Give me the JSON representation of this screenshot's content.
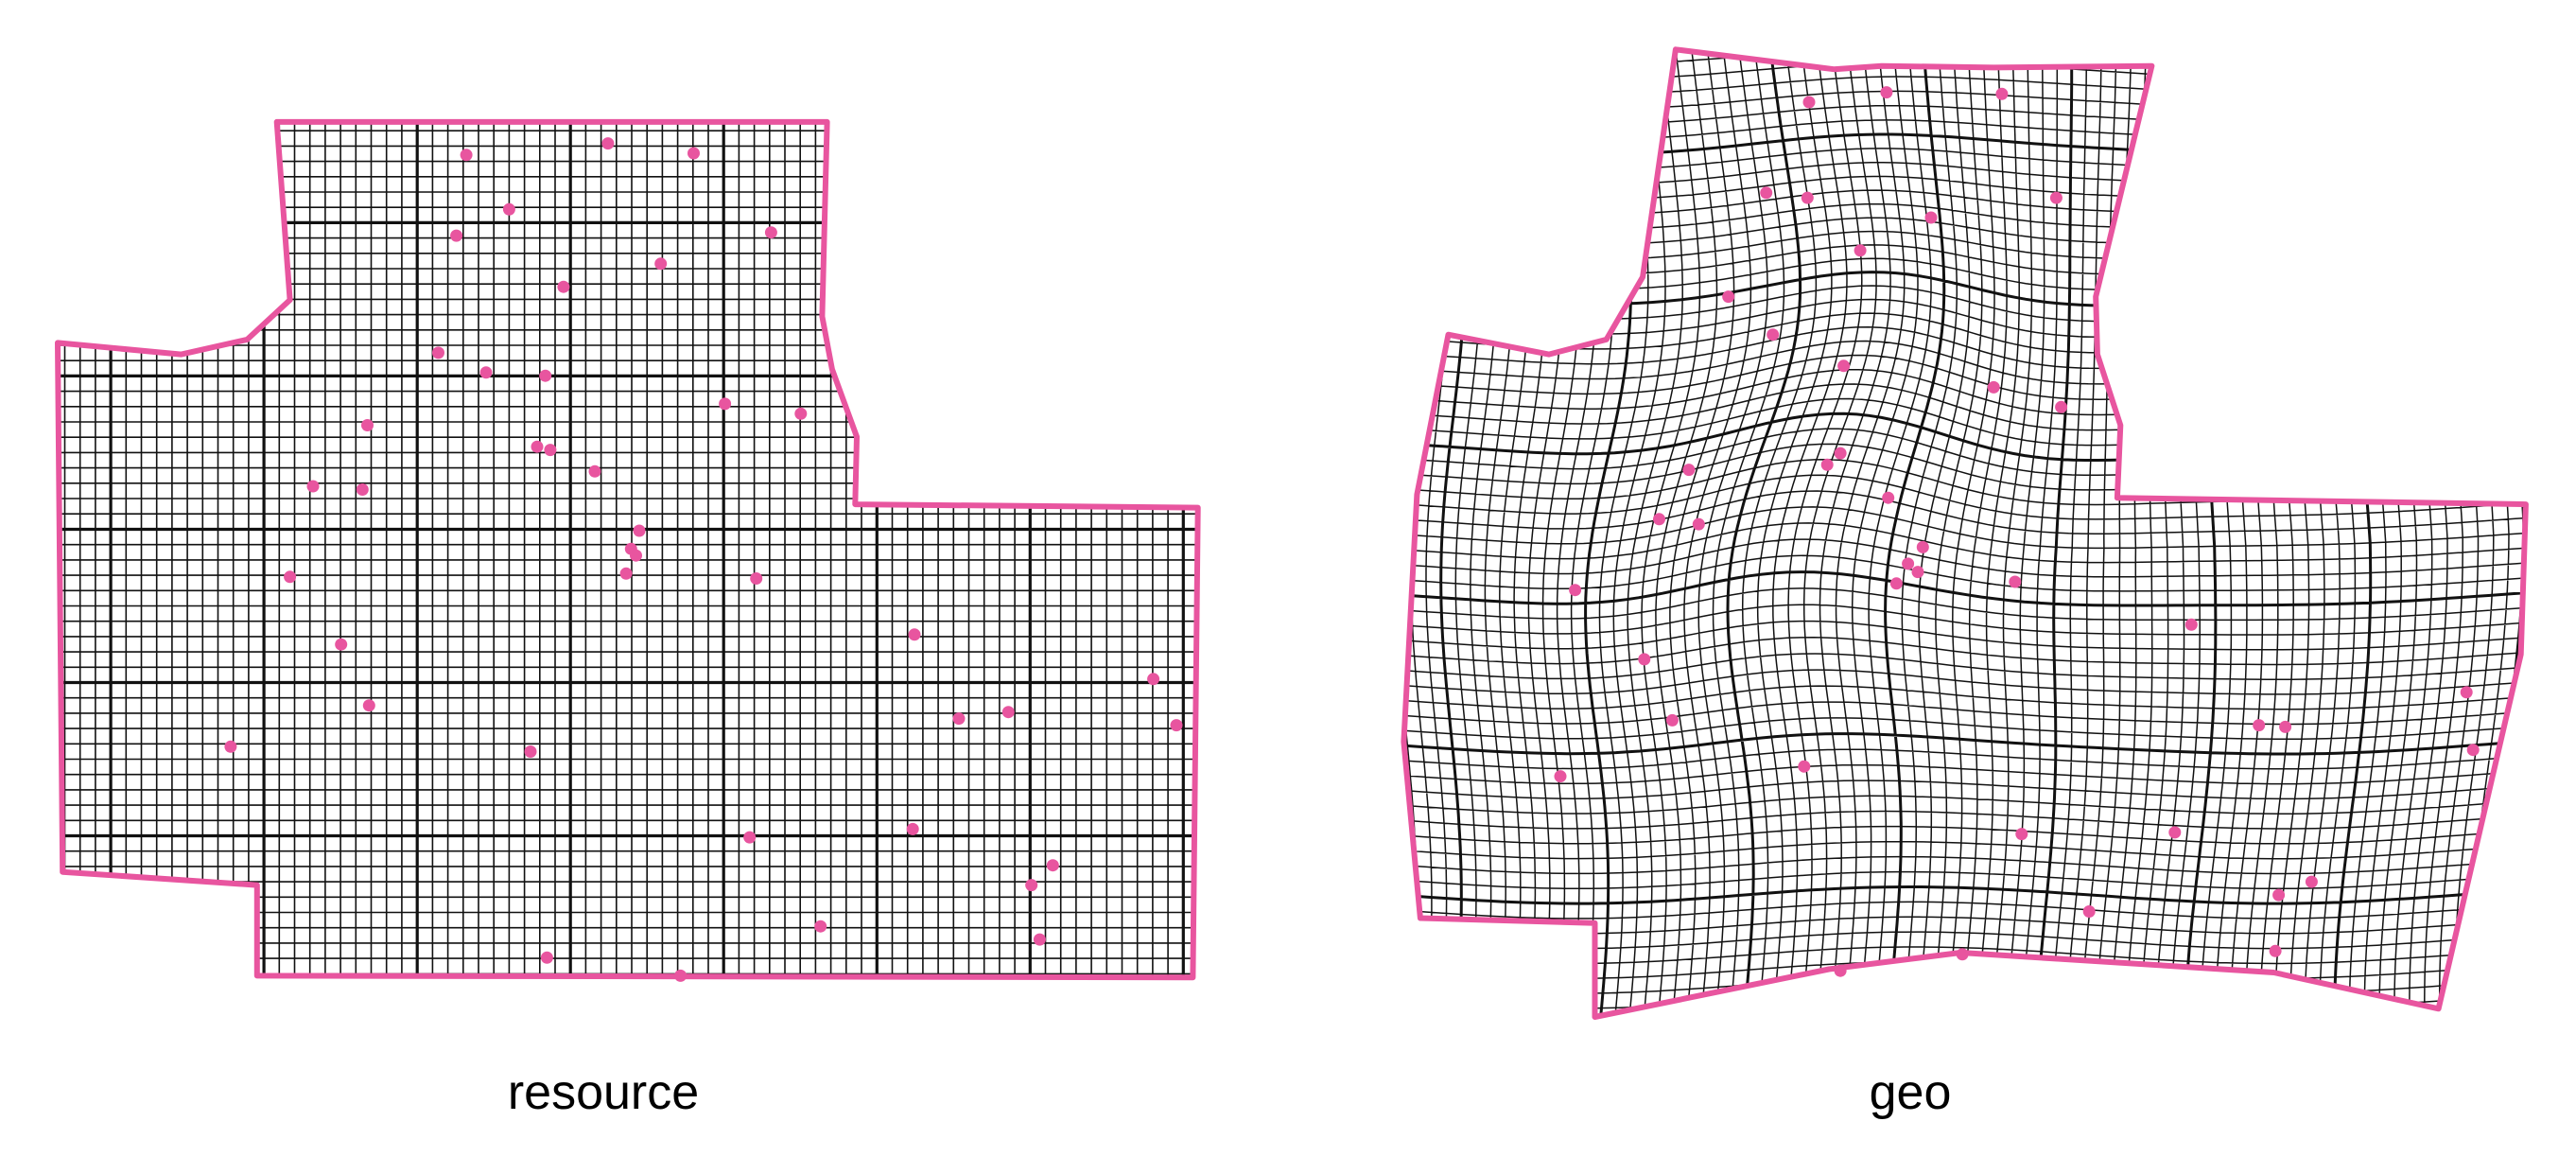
{
  "panels": [
    {
      "label": "resource"
    },
    {
      "label": "geo"
    }
  ],
  "colors": {
    "outline": "#e8559f",
    "points": "#e8559f",
    "grid": "#111111",
    "background": "#ffffff"
  }
}
